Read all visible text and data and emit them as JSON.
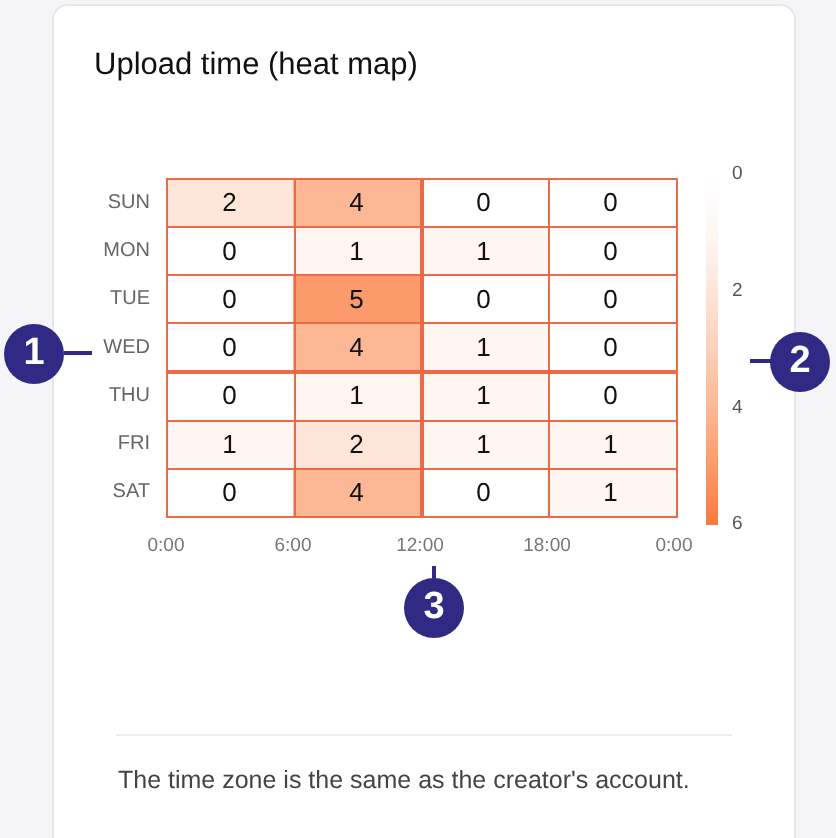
{
  "chart_data": {
    "type": "heatmap",
    "title": "Upload time (heat map)",
    "x": [
      3,
      9,
      15,
      21
    ],
    "xlim": [
      0,
      24
    ],
    "xticks": [
      {
        "value": 0,
        "label": "0:00"
      },
      {
        "value": 6,
        "label": "6:00"
      },
      {
        "value": 12,
        "label": "12:00"
      },
      {
        "value": 18,
        "label": "18:00"
      },
      {
        "value": 24,
        "label": "0:00"
      }
    ],
    "y_categories": [
      "SUN",
      "MON",
      "TUE",
      "WED",
      "THU",
      "FRI",
      "SAT"
    ],
    "cells": [
      [
        2,
        4,
        0,
        0
      ],
      [
        0,
        1,
        1,
        0
      ],
      [
        0,
        5,
        0,
        0
      ],
      [
        0,
        4,
        1,
        0
      ],
      [
        0,
        1,
        1,
        0
      ],
      [
        1,
        2,
        1,
        1
      ],
      [
        0,
        4,
        0,
        1
      ]
    ],
    "data_labels": true,
    "color": "#fa7a3c",
    "clim": [
      0,
      6
    ],
    "cticks": [
      0,
      2,
      4,
      6
    ],
    "annotations": [
      "1",
      "2",
      "3",
      "The time zone is the same as the creator's account."
    ]
  }
}
